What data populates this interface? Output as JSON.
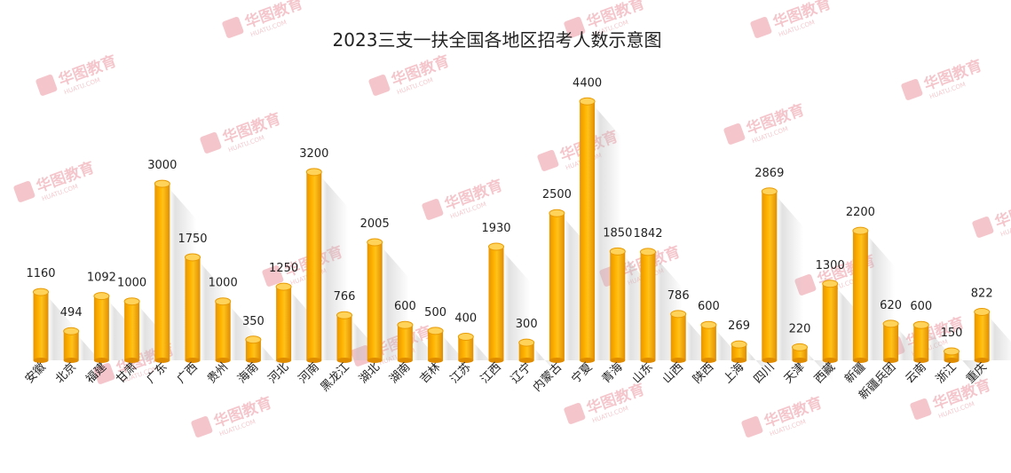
{
  "chart_data": {
    "type": "bar",
    "title": "2023三支一扶全国各地区招考人数示意图",
    "xlabel": "",
    "ylabel": "",
    "ylim": [
      0,
      4600
    ],
    "grid": false,
    "legend": "none",
    "categories": [
      "安徽",
      "北京",
      "福建",
      "甘肃",
      "广东",
      "广西",
      "贵州",
      "海南",
      "河北",
      "河南",
      "黑龙江",
      "湖北",
      "湖南",
      "吉林",
      "江苏",
      "江西",
      "辽宁",
      "内蒙古",
      "宁夏",
      "青海",
      "山东",
      "山西",
      "陕西",
      "上海",
      "四川",
      "天津",
      "西藏",
      "新疆",
      "新疆兵团",
      "云南",
      "浙江",
      "重庆"
    ],
    "series": [
      {
        "values": [
          1160,
          494,
          1092,
          1000,
          3000,
          1750,
          1000,
          350,
          1250,
          3200,
          766,
          2005,
          600,
          500,
          400,
          1930,
          300,
          2500,
          4400,
          1850,
          1842,
          786,
          600,
          269,
          2869,
          220,
          1300,
          2200,
          620,
          600,
          150,
          822
        ]
      }
    ],
    "bar_color": "#F5A800",
    "bar_highlight": "#FFD25A",
    "bar_shadow": "#C98200"
  },
  "watermark": {
    "brand": "华图教育",
    "sub": "HUATU.COM"
  }
}
